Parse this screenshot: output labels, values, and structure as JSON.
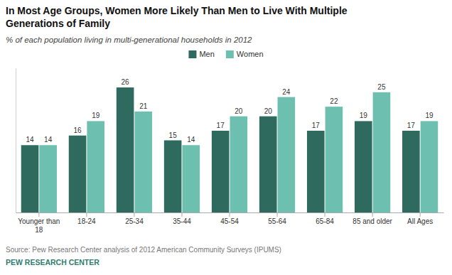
{
  "chart_data": {
    "type": "bar",
    "title": "In Most Age Groups, Women More Likely Than Men to Live With Multiple\nGenerations of Family",
    "subtitle": "% of each population living in multi-generational households in 2012",
    "categories": [
      "Younger than\n18",
      "18-24",
      "25-34",
      "35-44",
      "45-54",
      "55-64",
      "65-84",
      "85 and older",
      "All Ages"
    ],
    "series": [
      {
        "name": "Men",
        "color": "#2e6b5e",
        "values": [
          14,
          16,
          26,
          15,
          17,
          20,
          17,
          19,
          17
        ]
      },
      {
        "name": "Women",
        "color": "#6dbfb0",
        "values": [
          14,
          19,
          21,
          14,
          20,
          24,
          22,
          25,
          19
        ]
      }
    ],
    "ylim": [
      0,
      30
    ],
    "data_labels": true,
    "tick_labels": "x",
    "grid": false,
    "legend": "top",
    "annotations": [
      "Source: Pew Research Center analysis of 2012 American Community Surveys (IPUMS)",
      "PEW RESEARCH CENTER"
    ]
  }
}
